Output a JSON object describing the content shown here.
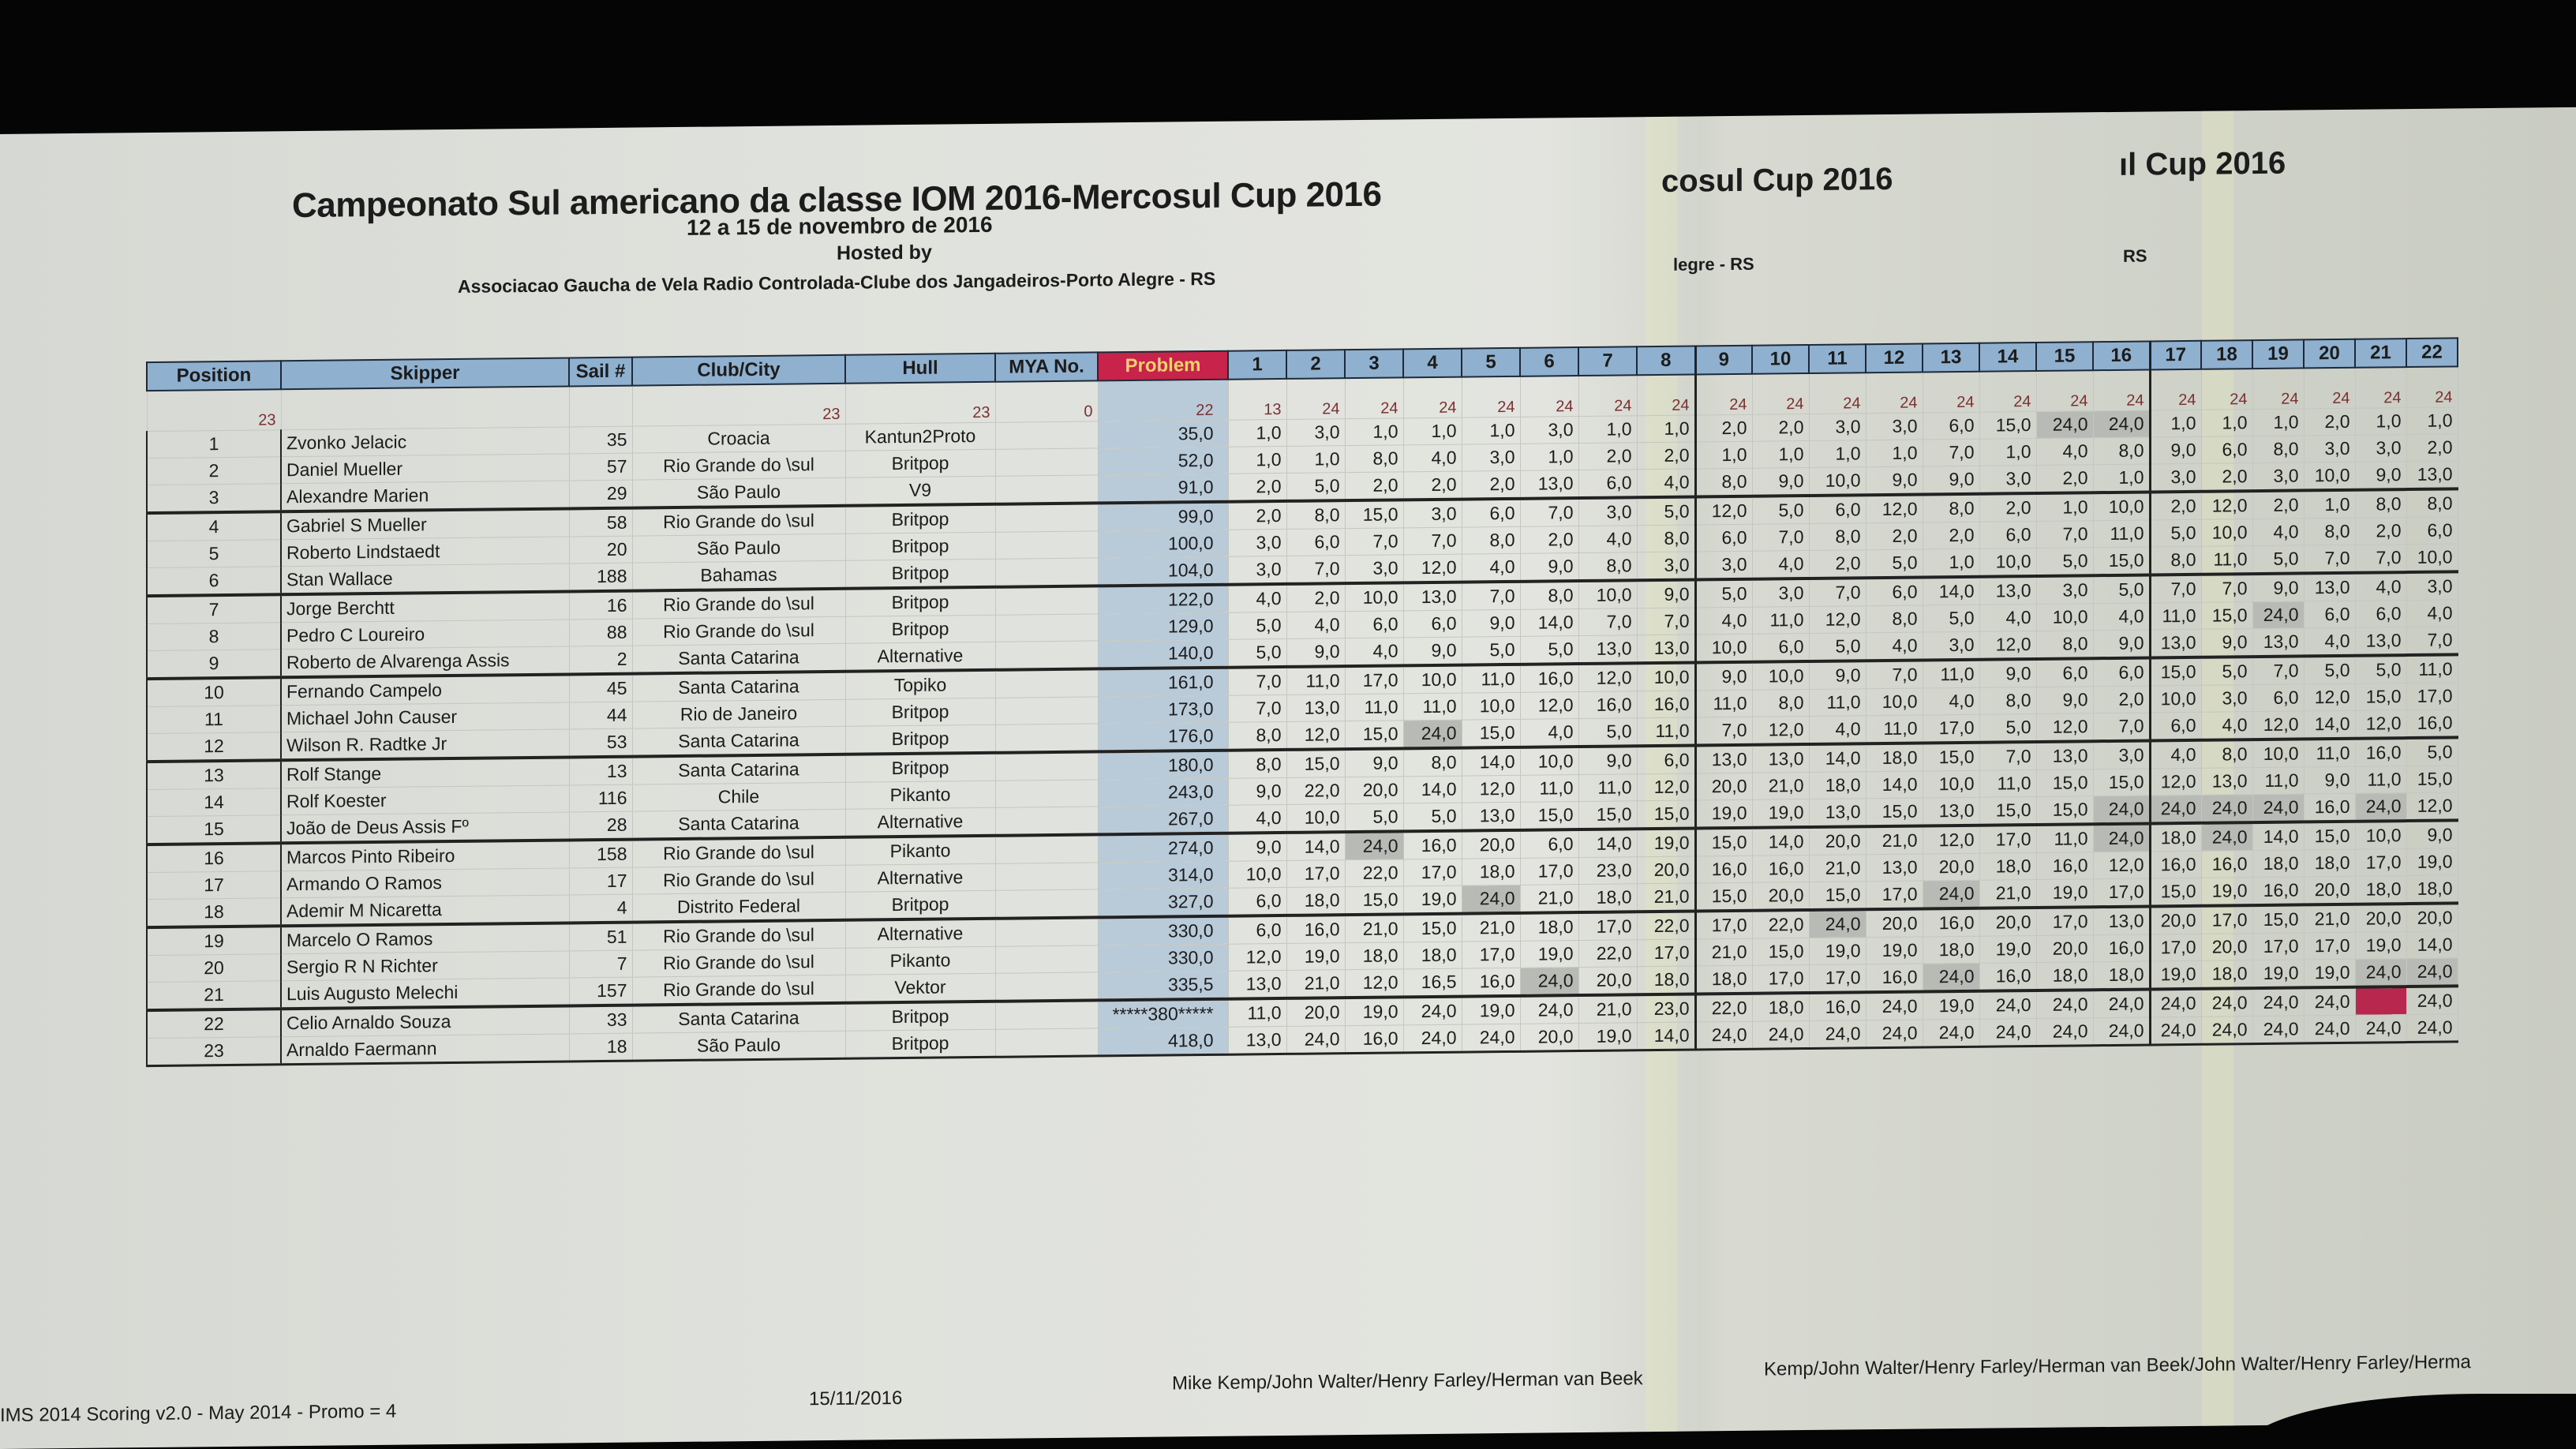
{
  "header": {
    "title": "Campeonato Sul americano da classe IOM 2016-Mercosul Cup 2016",
    "dates": "12 a 15 de novembro de 2016",
    "hosted_by": "Hosted by",
    "host": "Associacao Gaucha de Vela Radio Controlada-Clube dos Jangadeiros-Porto Alegre - RS",
    "ghost_title_1": "cosul Cup 2016",
    "ghost_title_2": "ıl Cup 2016",
    "ghost_host_1": "legre - RS",
    "ghost_host_2": "RS"
  },
  "columns": [
    "Position",
    "Skipper",
    "Sail #",
    "Club/City",
    "Hull",
    "MYA No.",
    "Problem"
  ],
  "races": [
    "1",
    "2",
    "3",
    "4",
    "5",
    "6",
    "7",
    "8",
    "9",
    "10",
    "11",
    "12",
    "13",
    "14",
    "15",
    "16",
    "17",
    "18",
    "19",
    "20",
    "21",
    "22"
  ],
  "counts": {
    "position": "23",
    "skipper": "",
    "sail": "",
    "club": "23",
    "hull": "23",
    "mya": "0",
    "problem": "22",
    "races": [
      "13",
      "24",
      "24",
      "24",
      "24",
      "24",
      "24",
      "24",
      "24",
      "24",
      "24",
      "24",
      "24",
      "24",
      "24",
      "24",
      "24",
      "24",
      "24",
      "24",
      "24",
      "24"
    ]
  },
  "colors": {
    "header": "#8fb0cf",
    "problem_header": "#c8234a",
    "problem_column": "#b9cad8",
    "flag_red": "#b8274e"
  },
  "rows": [
    {
      "pos": "1",
      "skipper": "Zvonko Jelacic",
      "sail": "35",
      "club": "Croacia",
      "hull": "Kantun2Proto",
      "mya": "",
      "total": "35,0",
      "scores": [
        "1,0",
        "3,0",
        "1,0",
        "1,0",
        "1,0",
        "3,0",
        "1,0",
        "1,0",
        "2,0",
        "2,0",
        "3,0",
        "3,0",
        "6,0",
        "15,0",
        "24,0",
        "24,0",
        "1,0",
        "1,0",
        "1,0",
        "2,0",
        "1,0",
        "1,0"
      ]
    },
    {
      "pos": "2",
      "skipper": "Daniel Mueller",
      "sail": "57",
      "club": "Rio Grande do \\sul",
      "hull": "Britpop",
      "mya": "",
      "total": "52,0",
      "scores": [
        "1,0",
        "1,0",
        "8,0",
        "4,0",
        "3,0",
        "1,0",
        "2,0",
        "2,0",
        "1,0",
        "1,0",
        "1,0",
        "1,0",
        "7,0",
        "1,0",
        "4,0",
        "8,0",
        "9,0",
        "6,0",
        "8,0",
        "3,0",
        "3,0",
        "2,0"
      ]
    },
    {
      "pos": "3",
      "skipper": "Alexandre Marien",
      "sail": "29",
      "club": "São Paulo",
      "hull": "V9",
      "mya": "",
      "total": "91,0",
      "scores": [
        "2,0",
        "5,0",
        "2,0",
        "2,0",
        "2,0",
        "13,0",
        "6,0",
        "4,0",
        "8,0",
        "9,0",
        "10,0",
        "9,0",
        "9,0",
        "3,0",
        "2,0",
        "1,0",
        "3,0",
        "2,0",
        "3,0",
        "10,0",
        "9,0",
        "13,0"
      ]
    },
    {
      "pos": "4",
      "skipper": "Gabriel S Mueller",
      "sail": "58",
      "club": "Rio Grande do \\sul",
      "hull": "Britpop",
      "mya": "",
      "total": "99,0",
      "scores": [
        "2,0",
        "8,0",
        "15,0",
        "3,0",
        "6,0",
        "7,0",
        "3,0",
        "5,0",
        "12,0",
        "5,0",
        "6,0",
        "12,0",
        "8,0",
        "2,0",
        "1,0",
        "10,0",
        "2,0",
        "12,0",
        "2,0",
        "1,0",
        "8,0",
        "8,0"
      ]
    },
    {
      "pos": "5",
      "skipper": "Roberto Lindstaedt",
      "sail": "20",
      "club": "São Paulo",
      "hull": "Britpop",
      "mya": "",
      "total": "100,0",
      "scores": [
        "3,0",
        "6,0",
        "7,0",
        "7,0",
        "8,0",
        "2,0",
        "4,0",
        "8,0",
        "6,0",
        "7,0",
        "8,0",
        "2,0",
        "2,0",
        "6,0",
        "7,0",
        "11,0",
        "5,0",
        "10,0",
        "4,0",
        "8,0",
        "2,0",
        "6,0"
      ]
    },
    {
      "pos": "6",
      "skipper": "Stan Wallace",
      "sail": "188",
      "club": "Bahamas",
      "hull": "Britpop",
      "mya": "",
      "total": "104,0",
      "scores": [
        "3,0",
        "7,0",
        "3,0",
        "12,0",
        "4,0",
        "9,0",
        "8,0",
        "3,0",
        "3,0",
        "4,0",
        "2,0",
        "5,0",
        "1,0",
        "10,0",
        "5,0",
        "15,0",
        "8,0",
        "11,0",
        "5,0",
        "7,0",
        "7,0",
        "10,0"
      ]
    },
    {
      "pos": "7",
      "skipper": "Jorge Berchtt",
      "sail": "16",
      "club": "Rio Grande do \\sul",
      "hull": "Britpop",
      "mya": "",
      "total": "122,0",
      "scores": [
        "4,0",
        "2,0",
        "10,0",
        "13,0",
        "7,0",
        "8,0",
        "10,0",
        "9,0",
        "5,0",
        "3,0",
        "7,0",
        "6,0",
        "14,0",
        "13,0",
        "3,0",
        "5,0",
        "7,0",
        "7,0",
        "9,0",
        "13,0",
        "4,0",
        "3,0"
      ]
    },
    {
      "pos": "8",
      "skipper": "Pedro C Loureiro",
      "sail": "88",
      "club": "Rio Grande do \\sul",
      "hull": "Britpop",
      "mya": "",
      "total": "129,0",
      "scores": [
        "5,0",
        "4,0",
        "6,0",
        "6,0",
        "9,0",
        "14,0",
        "7,0",
        "7,0",
        "4,0",
        "11,0",
        "12,0",
        "8,0",
        "5,0",
        "4,0",
        "10,0",
        "4,0",
        "11,0",
        "15,0",
        "24,0",
        "6,0",
        "6,0",
        "4,0"
      ]
    },
    {
      "pos": "9",
      "skipper": "Roberto de Alvarenga Assis",
      "sail": "2",
      "club": "Santa Catarina",
      "hull": "Alternative",
      "mya": "",
      "total": "140,0",
      "scores": [
        "5,0",
        "9,0",
        "4,0",
        "9,0",
        "5,0",
        "5,0",
        "13,0",
        "13,0",
        "10,0",
        "6,0",
        "5,0",
        "4,0",
        "3,0",
        "12,0",
        "8,0",
        "9,0",
        "13,0",
        "9,0",
        "13,0",
        "4,0",
        "13,0",
        "7,0"
      ]
    },
    {
      "pos": "10",
      "skipper": "Fernando Campelo",
      "sail": "45",
      "club": "Santa Catarina",
      "hull": "Topiko",
      "mya": "",
      "total": "161,0",
      "scores": [
        "7,0",
        "11,0",
        "17,0",
        "10,0",
        "11,0",
        "16,0",
        "12,0",
        "10,0",
        "9,0",
        "10,0",
        "9,0",
        "7,0",
        "11,0",
        "9,0",
        "6,0",
        "6,0",
        "15,0",
        "5,0",
        "7,0",
        "5,0",
        "5,0",
        "11,0"
      ]
    },
    {
      "pos": "11",
      "skipper": "Michael John Causer",
      "sail": "44",
      "club": "Rio de Janeiro",
      "hull": "Britpop",
      "mya": "",
      "total": "173,0",
      "scores": [
        "7,0",
        "13,0",
        "11,0",
        "11,0",
        "10,0",
        "12,0",
        "16,0",
        "16,0",
        "11,0",
        "8,0",
        "11,0",
        "10,0",
        "4,0",
        "8,0",
        "9,0",
        "2,0",
        "10,0",
        "3,0",
        "6,0",
        "12,0",
        "15,0",
        "17,0"
      ]
    },
    {
      "pos": "12",
      "skipper": "Wilson R. Radtke Jr",
      "sail": "53",
      "club": "Santa Catarina",
      "hull": "Britpop",
      "mya": "",
      "total": "176,0",
      "scores": [
        "8,0",
        "12,0",
        "15,0",
        "24,0",
        "15,0",
        "4,0",
        "5,0",
        "11,0",
        "7,0",
        "12,0",
        "4,0",
        "11,0",
        "17,0",
        "5,0",
        "12,0",
        "7,0",
        "6,0",
        "4,0",
        "12,0",
        "14,0",
        "12,0",
        "16,0"
      ]
    },
    {
      "pos": "13",
      "skipper": "Rolf Stange",
      "sail": "13",
      "club": "Santa Catarina",
      "hull": "Britpop",
      "mya": "",
      "total": "180,0",
      "scores": [
        "8,0",
        "15,0",
        "9,0",
        "8,0",
        "14,0",
        "10,0",
        "9,0",
        "6,0",
        "13,0",
        "13,0",
        "14,0",
        "18,0",
        "15,0",
        "7,0",
        "13,0",
        "3,0",
        "4,0",
        "8,0",
        "10,0",
        "11,0",
        "16,0",
        "5,0"
      ]
    },
    {
      "pos": "14",
      "skipper": "Rolf Koester",
      "sail": "116",
      "club": "Chile",
      "hull": "Pikanto",
      "mya": "",
      "total": "243,0",
      "scores": [
        "9,0",
        "22,0",
        "20,0",
        "14,0",
        "12,0",
        "11,0",
        "11,0",
        "12,0",
        "20,0",
        "21,0",
        "18,0",
        "14,0",
        "10,0",
        "11,0",
        "15,0",
        "15,0",
        "12,0",
        "13,0",
        "11,0",
        "9,0",
        "11,0",
        "15,0"
      ]
    },
    {
      "pos": "15",
      "skipper": "João de Deus Assis Fº",
      "sail": "28",
      "club": "Santa Catarina",
      "hull": "Alternative",
      "mya": "",
      "total": "267,0",
      "scores": [
        "4,0",
        "10,0",
        "5,0",
        "5,0",
        "13,0",
        "15,0",
        "15,0",
        "15,0",
        "19,0",
        "19,0",
        "13,0",
        "15,0",
        "13,0",
        "15,0",
        "15,0",
        "24,0",
        "24,0",
        "24,0",
        "24,0",
        "16,0",
        "24,0",
        "12,0"
      ]
    },
    {
      "pos": "16",
      "skipper": "Marcos Pinto Ribeiro",
      "sail": "158",
      "club": "Rio Grande do \\sul",
      "hull": "Pikanto",
      "mya": "",
      "total": "274,0",
      "scores": [
        "9,0",
        "14,0",
        "24,0",
        "16,0",
        "20,0",
        "6,0",
        "14,0",
        "19,0",
        "15,0",
        "14,0",
        "20,0",
        "21,0",
        "12,0",
        "17,0",
        "11,0",
        "24,0",
        "18,0",
        "24,0",
        "14,0",
        "15,0",
        "10,0",
        "9,0"
      ]
    },
    {
      "pos": "17",
      "skipper": "Armando O Ramos",
      "sail": "17",
      "club": "Rio Grande do \\sul",
      "hull": "Alternative",
      "mya": "",
      "total": "314,0",
      "scores": [
        "10,0",
        "17,0",
        "22,0",
        "17,0",
        "18,0",
        "17,0",
        "23,0",
        "20,0",
        "16,0",
        "16,0",
        "21,0",
        "13,0",
        "20,0",
        "18,0",
        "16,0",
        "12,0",
        "16,0",
        "16,0",
        "18,0",
        "18,0",
        "17,0",
        "19,0"
      ]
    },
    {
      "pos": "18",
      "skipper": "Ademir M Nicaretta",
      "sail": "4",
      "club": "Distrito Federal",
      "hull": "Britpop",
      "mya": "",
      "total": "327,0",
      "scores": [
        "6,0",
        "18,0",
        "15,0",
        "19,0",
        "24,0",
        "21,0",
        "18,0",
        "21,0",
        "15,0",
        "20,0",
        "15,0",
        "17,0",
        "24,0",
        "21,0",
        "19,0",
        "17,0",
        "15,0",
        "19,0",
        "16,0",
        "20,0",
        "18,0",
        "18,0"
      ]
    },
    {
      "pos": "19",
      "skipper": "Marcelo O Ramos",
      "sail": "51",
      "club": "Rio Grande do \\sul",
      "hull": "Alternative",
      "mya": "",
      "total": "330,0",
      "scores": [
        "6,0",
        "16,0",
        "21,0",
        "15,0",
        "21,0",
        "18,0",
        "17,0",
        "22,0",
        "17,0",
        "22,0",
        "24,0",
        "20,0",
        "16,0",
        "20,0",
        "17,0",
        "13,0",
        "20,0",
        "17,0",
        "15,0",
        "21,0",
        "20,0",
        "20,0"
      ]
    },
    {
      "pos": "20",
      "skipper": "Sergio R N Richter",
      "sail": "7",
      "club": "Rio Grande do \\sul",
      "hull": "Pikanto",
      "mya": "",
      "total": "330,0",
      "scores": [
        "12,0",
        "19,0",
        "18,0",
        "18,0",
        "17,0",
        "19,0",
        "22,0",
        "17,0",
        "21,0",
        "15,0",
        "19,0",
        "19,0",
        "18,0",
        "19,0",
        "20,0",
        "16,0",
        "17,0",
        "20,0",
        "17,0",
        "17,0",
        "19,0",
        "14,0"
      ]
    },
    {
      "pos": "21",
      "skipper": "Luis Augusto Melechi",
      "sail": "157",
      "club": "Rio Grande do \\sul",
      "hull": "Vektor",
      "mya": "",
      "total": "335,5",
      "scores": [
        "13,0",
        "21,0",
        "12,0",
        "16,5",
        "16,0",
        "24,0",
        "20,0",
        "18,0",
        "18,0",
        "17,0",
        "17,0",
        "16,0",
        "24,0",
        "16,0",
        "18,0",
        "18,0",
        "19,0",
        "18,0",
        "19,0",
        "19,0",
        "24,0",
        "24,0"
      ]
    },
    {
      "pos": "22",
      "skipper": "Celio Arnaldo Souza",
      "sail": "33",
      "club": "Santa Catarina",
      "hull": "Britpop",
      "mya": "",
      "total": "*****380*****",
      "scores": [
        "11,0",
        "20,0",
        "19,0",
        "24,0",
        "19,0",
        "24,0",
        "21,0",
        "23,0",
        "22,0",
        "18,0",
        "16,0",
        "24,0",
        "19,0",
        "24,0",
        "24,0",
        "24,0",
        "24,0",
        "24,0",
        "24,0",
        "24,0",
        "",
        "24,0"
      ]
    },
    {
      "pos": "23",
      "skipper": "Arnaldo Faermann",
      "sail": "18",
      "club": "São Paulo",
      "hull": "Britpop",
      "mya": "",
      "total": "418,0",
      "scores": [
        "13,0",
        "24,0",
        "16,0",
        "24,0",
        "24,0",
        "20,0",
        "19,0",
        "14,0",
        "24,0",
        "24,0",
        "24,0",
        "24,0",
        "24,0",
        "24,0",
        "24,0",
        "24,0",
        "24,0",
        "24,0",
        "24,0",
        "24,0",
        "24,0",
        "24,0"
      ]
    }
  ],
  "footer": {
    "software": "IMS 2014 Scoring v2.0 - May 2014 - Promo = 4",
    "date": "15/11/2016",
    "credits": "Mike Kemp/John Walter/Henry Farley/Herman van Beek",
    "credits_repeat": "Kemp/John Walter/Henry Farley/Herman van Beek/John Walter/Henry Farley/Herma"
  }
}
